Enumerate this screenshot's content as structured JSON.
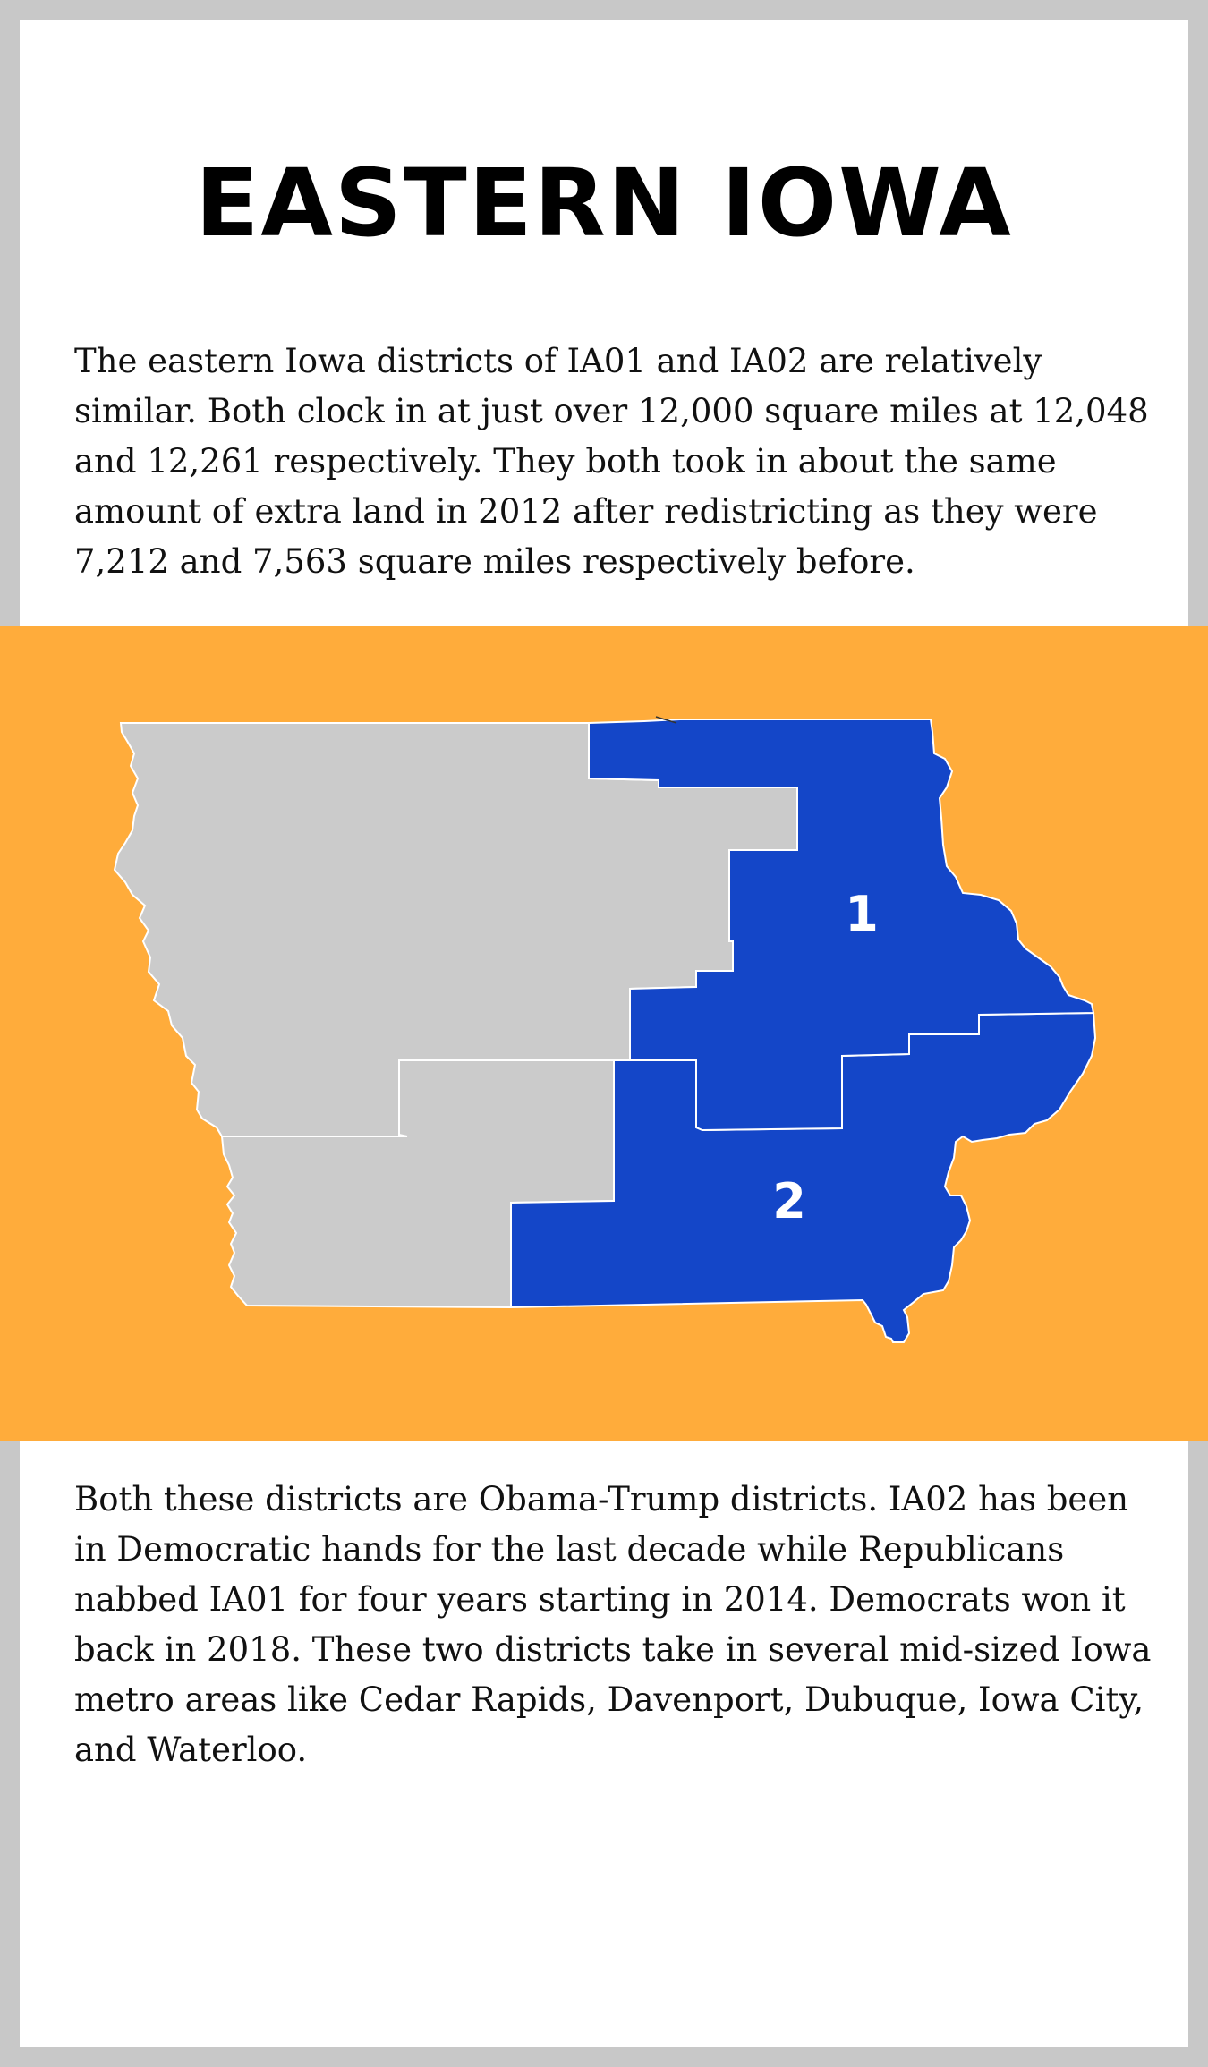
{
  "title": "EASTERN IOWA",
  "intro": "The eastern Iowa districts of IA01 and IA02 are relatively similar. Both clock in at just over 12,000 square miles at 12,048 and 12,261 respectively. They both took in about the same amount of extra land in 2012 after redistricting as they were 7,212 and 7,563 square miles respectively before.",
  "map": {
    "background_color": "#ffac3b",
    "highlight_color": "#1446c8",
    "other_color": "#cbcbcb",
    "districts": [
      {
        "label": "1",
        "highlighted": true
      },
      {
        "label": "2",
        "highlighted": true
      }
    ]
  },
  "body": "Both these districts are Obama-Trump districts. IA02 has been in Democratic hands for the last decade while Republicans nabbed IA01 for four years starting in 2014. Democrats won it back in 2018. These two districts take in several mid-sized Iowa metro areas like Cedar Rapids, Davenport, Dubuque, Iowa City, and Waterloo."
}
